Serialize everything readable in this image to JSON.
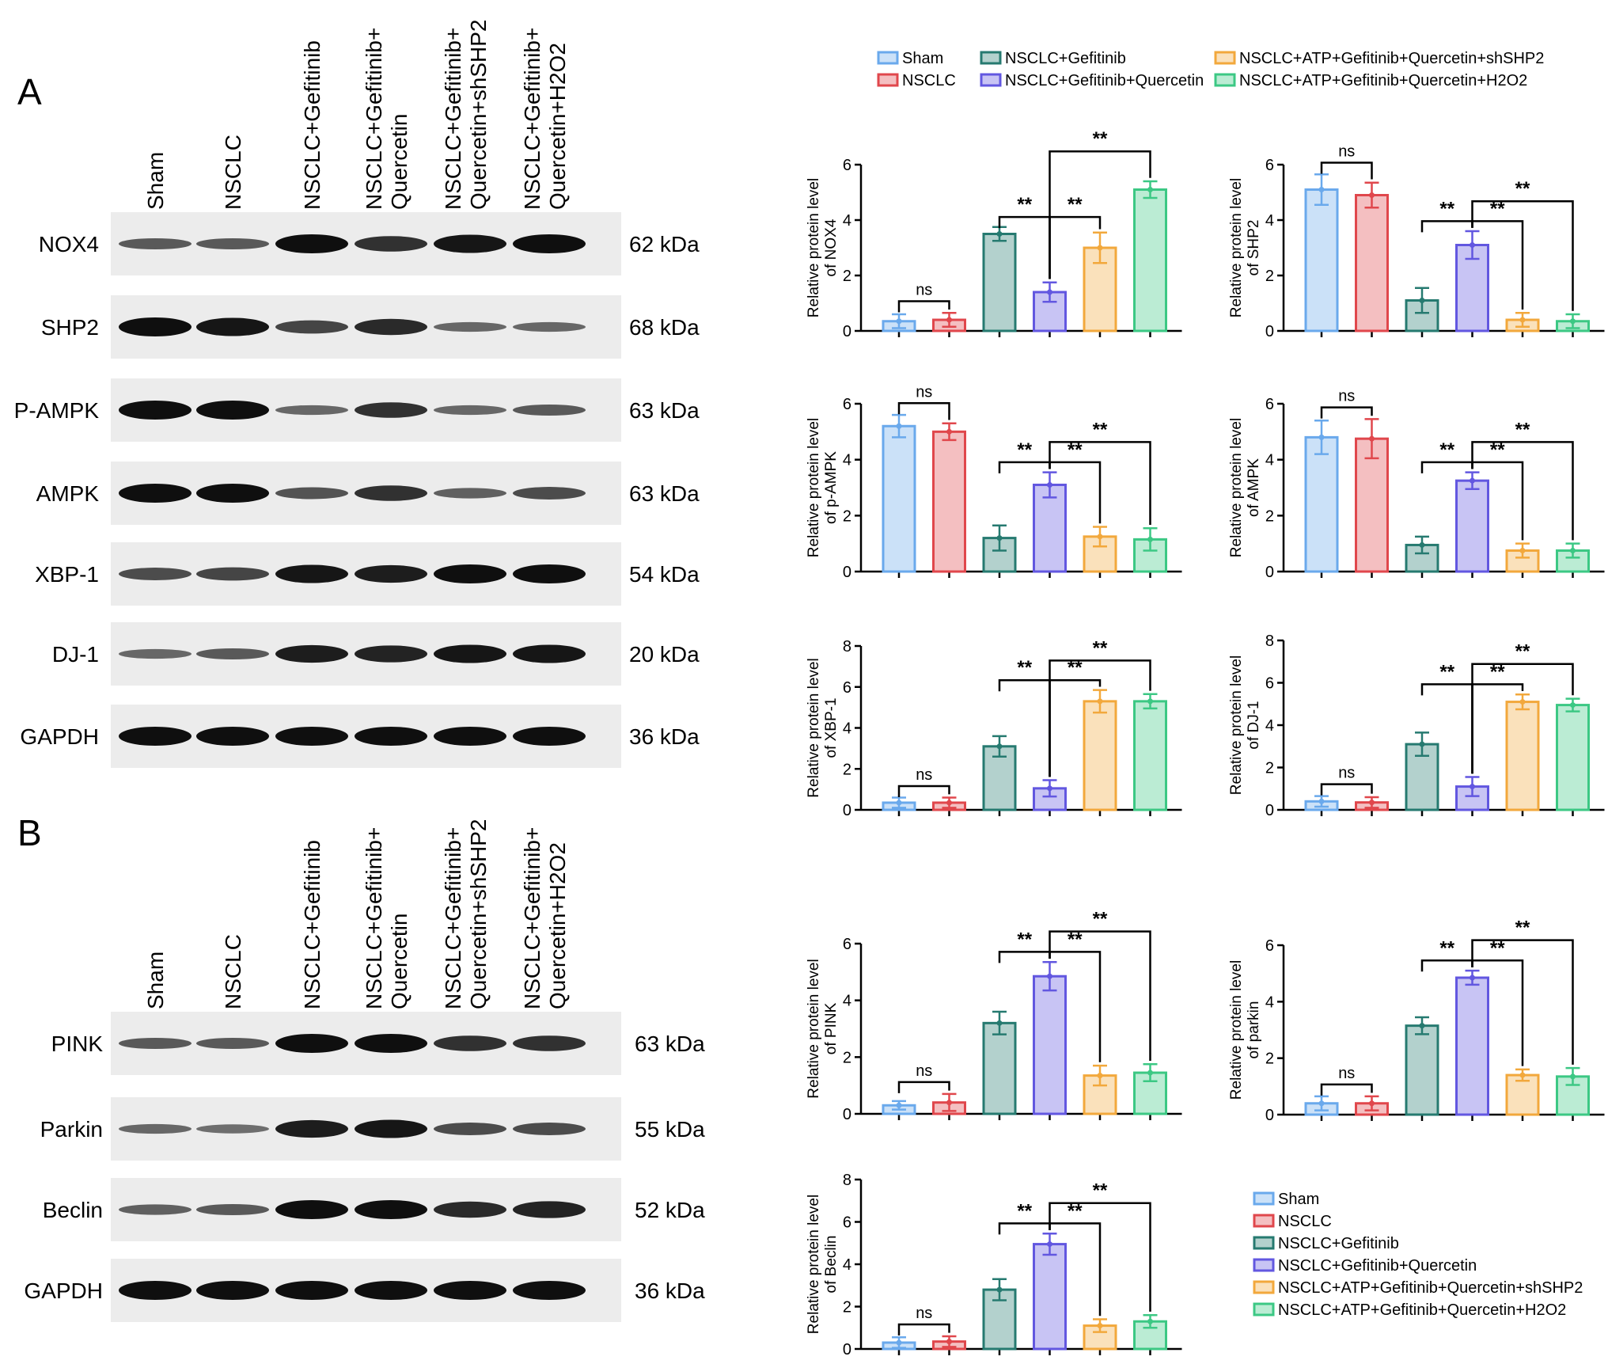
{
  "panel_labels": [
    "A",
    "B"
  ],
  "blot_a": {
    "lanes": [
      "Sham",
      "NSCLC",
      "NSCLC+Gefitinib",
      "NSCLC+Gefitinib+\nQuercetin",
      "NSCLC+Gefitinib+\nQuercetin+shSHP2",
      "NSCLC+Gefitinib+\nQuercetin+H2O2"
    ],
    "rows": [
      {
        "protein": "NOX4",
        "kda": "62 kDa",
        "intensity": [
          0.45,
          0.45,
          1.0,
          0.75,
          0.95,
          1.0
        ]
      },
      {
        "protein": "SHP2",
        "kda": "68 kDa",
        "intensity": [
          1.0,
          0.95,
          0.6,
          0.8,
          0.35,
          0.35
        ]
      },
      {
        "protein": "P-AMPK",
        "kda": "63 kDa",
        "intensity": [
          1.0,
          1.0,
          0.35,
          0.75,
          0.35,
          0.45
        ]
      },
      {
        "protein": "AMPK",
        "kda": "63 kDa",
        "intensity": [
          1.0,
          1.0,
          0.5,
          0.75,
          0.4,
          0.55
        ]
      },
      {
        "protein": "XBP-1",
        "kda": "54 kDa",
        "intensity": [
          0.55,
          0.6,
          0.95,
          0.9,
          1.0,
          1.0
        ]
      },
      {
        "protein": "DJ-1",
        "kda": "20 kDa",
        "intensity": [
          0.35,
          0.45,
          0.9,
          0.85,
          0.95,
          0.95
        ]
      },
      {
        "protein": "GAPDH",
        "kda": "36 kDa",
        "intensity": [
          1.0,
          1.0,
          1.0,
          1.0,
          1.0,
          1.0
        ]
      }
    ]
  },
  "blot_b": {
    "lanes": [
      "Sham",
      "NSCLC",
      "NSCLC+Gefitinib",
      "NSCLC+Gefitinib+\nQuercetin",
      "NSCLC+Gefitinib+\nQuercetin+shSHP2",
      "NSCLC+Gefitinib+\nQuercetin+H2O2"
    ],
    "rows": [
      {
        "protein": "PINK",
        "kda": "63 kDa",
        "intensity": [
          0.45,
          0.45,
          1.0,
          1.0,
          0.75,
          0.75
        ]
      },
      {
        "protein": "Parkin",
        "kda": "55 kDa",
        "intensity": [
          0.35,
          0.3,
          0.9,
          0.95,
          0.55,
          0.55
        ]
      },
      {
        "protein": "Beclin",
        "kda": "52 kDa",
        "intensity": [
          0.4,
          0.45,
          1.0,
          1.0,
          0.8,
          0.85
        ]
      },
      {
        "protein": "GAPDH",
        "kda": "36 kDa",
        "intensity": [
          1.0,
          1.0,
          1.0,
          1.0,
          1.0,
          1.0
        ]
      }
    ]
  },
  "legend": [
    {
      "label": "Sham",
      "color": "#6aa9ec"
    },
    {
      "label": "NSCLC",
      "color": "#e0474c"
    },
    {
      "label": "NSCLC+Gefitinib",
      "color": "#267a70"
    },
    {
      "label": "NSCLC+Gefitinib+Quercetin",
      "color": "#6257e0"
    },
    {
      "label": "NSCLC+ATP+Gefitinib+Quercetin+shSHP2",
      "color": "#f2a83c"
    },
    {
      "label": "NSCLC+ATP+Gefitinib+Quercetin+H2O2",
      "color": "#3cc884"
    }
  ],
  "chart_data": [
    {
      "type": "bar",
      "title": "",
      "ylabel": "Relative protein level\nof NOX4",
      "ylim": [
        0,
        6
      ],
      "yticks": [
        0,
        2,
        4,
        6
      ],
      "values": [
        0.35,
        0.4,
        3.5,
        1.4,
        3.0,
        5.1
      ],
      "errors": [
        0.25,
        0.25,
        0.25,
        0.35,
        0.55,
        0.3
      ],
      "sig": [
        {
          "from": 0,
          "to": 1,
          "label": "ns"
        },
        {
          "from": 2,
          "to": 3,
          "label": "**"
        },
        {
          "from": 3,
          "to": 4,
          "label": "**"
        },
        {
          "from": 3,
          "to": 5,
          "label": "**"
        }
      ]
    },
    {
      "type": "bar",
      "title": "",
      "ylabel": "Relative protein level\nof SHP2",
      "ylim": [
        0,
        6
      ],
      "yticks": [
        0,
        2,
        4,
        6
      ],
      "values": [
        5.1,
        4.9,
        1.1,
        3.1,
        0.4,
        0.35
      ],
      "errors": [
        0.55,
        0.45,
        0.45,
        0.5,
        0.25,
        0.25
      ],
      "sig": [
        {
          "from": 0,
          "to": 1,
          "label": "ns"
        },
        {
          "from": 2,
          "to": 3,
          "label": "**"
        },
        {
          "from": 3,
          "to": 4,
          "label": "**"
        },
        {
          "from": 3,
          "to": 5,
          "label": "**"
        }
      ]
    },
    {
      "type": "bar",
      "title": "",
      "ylabel": "Relative protein level\nof p-AMPK",
      "ylim": [
        0,
        6
      ],
      "yticks": [
        0,
        2,
        4,
        6
      ],
      "values": [
        5.2,
        5.0,
        1.2,
        3.1,
        1.25,
        1.15
      ],
      "errors": [
        0.4,
        0.3,
        0.45,
        0.45,
        0.35,
        0.4
      ],
      "sig": [
        {
          "from": 0,
          "to": 1,
          "label": "ns"
        },
        {
          "from": 2,
          "to": 3,
          "label": "**"
        },
        {
          "from": 3,
          "to": 4,
          "label": "**"
        },
        {
          "from": 3,
          "to": 5,
          "label": "**"
        }
      ]
    },
    {
      "type": "bar",
      "title": "",
      "ylabel": "Relative protein level\nof AMPK",
      "ylim": [
        0,
        6
      ],
      "yticks": [
        0,
        2,
        4,
        6
      ],
      "values": [
        4.8,
        4.75,
        0.95,
        3.25,
        0.75,
        0.75
      ],
      "errors": [
        0.6,
        0.7,
        0.3,
        0.3,
        0.25,
        0.25
      ],
      "sig": [
        {
          "from": 0,
          "to": 1,
          "label": "ns"
        },
        {
          "from": 2,
          "to": 3,
          "label": "**"
        },
        {
          "from": 3,
          "to": 4,
          "label": "**"
        },
        {
          "from": 3,
          "to": 5,
          "label": "**"
        }
      ]
    },
    {
      "type": "bar",
      "title": "",
      "ylabel": "Relative protein level\nof XBP-1",
      "ylim": [
        0,
        8
      ],
      "yticks": [
        0,
        2,
        4,
        6,
        8
      ],
      "values": [
        0.35,
        0.35,
        3.1,
        1.05,
        5.3,
        5.3
      ],
      "errors": [
        0.25,
        0.25,
        0.5,
        0.4,
        0.55,
        0.35
      ],
      "sig": [
        {
          "from": 0,
          "to": 1,
          "label": "ns"
        },
        {
          "from": 2,
          "to": 3,
          "label": "**"
        },
        {
          "from": 3,
          "to": 4,
          "label": "**"
        },
        {
          "from": 3,
          "to": 5,
          "label": "**"
        }
      ]
    },
    {
      "type": "bar",
      "title": "",
      "ylabel": "Relative protein level\nof DJ-1",
      "ylim": [
        0,
        8
      ],
      "yticks": [
        0,
        2,
        4,
        6,
        8
      ],
      "values": [
        0.4,
        0.35,
        3.1,
        1.1,
        5.1,
        4.95
      ],
      "errors": [
        0.25,
        0.25,
        0.55,
        0.45,
        0.35,
        0.3
      ],
      "sig": [
        {
          "from": 0,
          "to": 1,
          "label": "ns"
        },
        {
          "from": 2,
          "to": 3,
          "label": "**"
        },
        {
          "from": 3,
          "to": 4,
          "label": "**"
        },
        {
          "from": 3,
          "to": 5,
          "label": "**"
        }
      ]
    },
    {
      "type": "bar",
      "title": "",
      "ylabel": "Relative protein level\nof PINK",
      "ylim": [
        0,
        6
      ],
      "yticks": [
        0,
        2,
        4,
        6
      ],
      "values": [
        0.3,
        0.4,
        3.2,
        4.85,
        1.35,
        1.45
      ],
      "errors": [
        0.15,
        0.3,
        0.4,
        0.5,
        0.35,
        0.3
      ],
      "sig": [
        {
          "from": 0,
          "to": 1,
          "label": "ns"
        },
        {
          "from": 2,
          "to": 3,
          "label": "**"
        },
        {
          "from": 3,
          "to": 4,
          "label": "**"
        },
        {
          "from": 3,
          "to": 5,
          "label": "**"
        }
      ]
    },
    {
      "type": "bar",
      "title": "",
      "ylabel": "Relative protein level\nof parkin",
      "ylim": [
        0,
        6
      ],
      "yticks": [
        0,
        2,
        4,
        6
      ],
      "values": [
        0.4,
        0.4,
        3.15,
        4.85,
        1.4,
        1.35
      ],
      "errors": [
        0.25,
        0.25,
        0.3,
        0.25,
        0.2,
        0.3
      ],
      "sig": [
        {
          "from": 0,
          "to": 1,
          "label": "ns"
        },
        {
          "from": 2,
          "to": 3,
          "label": "**"
        },
        {
          "from": 3,
          "to": 4,
          "label": "**"
        },
        {
          "from": 3,
          "to": 5,
          "label": "**"
        }
      ]
    },
    {
      "type": "bar",
      "title": "",
      "ylabel": "Relative protein level\nof Beclin",
      "ylim": [
        0,
        8
      ],
      "yticks": [
        0,
        2,
        4,
        6,
        8
      ],
      "values": [
        0.3,
        0.35,
        2.8,
        4.95,
        1.1,
        1.3
      ],
      "errors": [
        0.25,
        0.25,
        0.5,
        0.5,
        0.3,
        0.3
      ],
      "sig": [
        {
          "from": 0,
          "to": 1,
          "label": "ns"
        },
        {
          "from": 2,
          "to": 3,
          "label": "**"
        },
        {
          "from": 3,
          "to": 4,
          "label": "**"
        },
        {
          "from": 3,
          "to": 5,
          "label": "**"
        }
      ]
    }
  ]
}
